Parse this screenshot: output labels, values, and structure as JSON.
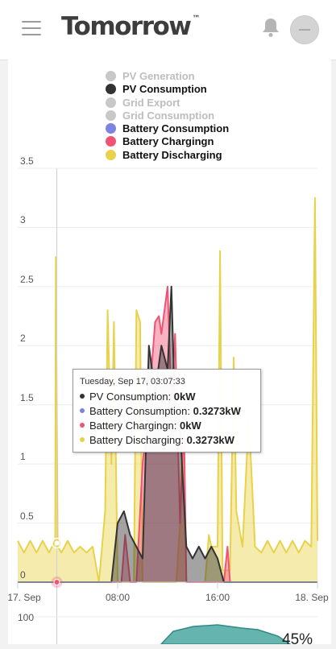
{
  "header": {
    "logo_text": "Tomorrow",
    "logo_mark": "™",
    "menu_icon": "hamburger-menu-icon",
    "bell_icon": "bell-icon",
    "avatar_icon": "avatar"
  },
  "colors": {
    "pv_consumption": "#333333",
    "battery_consumption": "#7b84e0",
    "battery_charging": "#ef5475",
    "battery_discharging": "#e8d24a",
    "disabled": "#c8c8c8"
  },
  "legend": [
    {
      "label": "PV Generation",
      "enabled": false,
      "color": "#c8c8c8"
    },
    {
      "label": "PV Consumption",
      "enabled": true,
      "color": "#333333"
    },
    {
      "label": "Grid Export",
      "enabled": false,
      "color": "#c8c8c8"
    },
    {
      "label": "Grid Consumption",
      "enabled": false,
      "color": "#c8c8c8"
    },
    {
      "label": "Battery Consumption",
      "enabled": true,
      "color": "#7b84e0"
    },
    {
      "label": "Battery Chargingn",
      "enabled": true,
      "color": "#ef5475"
    },
    {
      "label": "Battery Discharging",
      "enabled": true,
      "color": "#e8d24a"
    }
  ],
  "tooltip": {
    "title": "Tuesday, Sep 17, 03:07:33",
    "rows": [
      {
        "label": "PV Consumption: ",
        "value": "0kW",
        "color": "#333333"
      },
      {
        "label": "Battery Consumption: ",
        "value": "0.3273kW",
        "color": "#7b84e0"
      },
      {
        "label": "Battery Chargingn: ",
        "value": "0kW",
        "color": "#ef5475"
      },
      {
        "label": "Battery Discharging: ",
        "value": "0.3273kW",
        "color": "#e8d24a"
      }
    ]
  },
  "chart_data": {
    "type": "area",
    "ylim": [
      0,
      3.5
    ],
    "y_ticks": [
      "3.5",
      "3",
      "2.5",
      "2",
      "1.5",
      "1",
      "0.5",
      "0"
    ],
    "x_ticks": [
      "17. Sep",
      "08:00",
      "16:00",
      "18. Sep"
    ],
    "x_tick_hours": [
      0,
      8,
      16,
      24
    ],
    "crosshair_hour": 3.13,
    "series": [
      {
        "name": "Battery Discharging",
        "color": "#e8d24a",
        "points": [
          [
            0,
            0.35
          ],
          [
            0.5,
            0.25
          ],
          [
            1,
            0.35
          ],
          [
            1.5,
            0.25
          ],
          [
            2,
            0.35
          ],
          [
            2.5,
            0.25
          ],
          [
            3,
            0.35
          ],
          [
            3.05,
            2.75
          ],
          [
            3.2,
            0.3
          ],
          [
            3.5,
            0.25
          ],
          [
            4,
            0.35
          ],
          [
            4.5,
            0.25
          ],
          [
            5,
            0.3
          ],
          [
            5.5,
            0.25
          ],
          [
            6,
            0.3
          ],
          [
            6.5,
            0.0
          ],
          [
            7,
            0.6
          ],
          [
            7.2,
            2.3
          ],
          [
            7.5,
            1.0
          ],
          [
            7.7,
            2.2
          ],
          [
            8,
            0.0
          ],
          [
            9.3,
            0.0
          ],
          [
            9.5,
            2.3
          ],
          [
            9.8,
            2.2
          ],
          [
            10,
            0.0
          ],
          [
            12,
            0.0
          ],
          [
            12.7,
            0.0
          ],
          [
            13,
            0.5
          ],
          [
            13.2,
            1.3
          ],
          [
            13.5,
            0.0
          ],
          [
            15,
            0.0
          ],
          [
            15.3,
            0.4
          ],
          [
            15.5,
            0.3
          ],
          [
            16,
            0.3
          ],
          [
            16.2,
            2.8
          ],
          [
            16.4,
            0.1
          ],
          [
            17,
            0.1
          ],
          [
            17.3,
            1.9
          ],
          [
            17.5,
            0.6
          ],
          [
            18,
            0.3
          ],
          [
            18.5,
            1.4
          ],
          [
            19,
            0.3
          ],
          [
            19.5,
            0.25
          ],
          [
            20,
            0.35
          ],
          [
            20.5,
            0.25
          ],
          [
            21,
            0.35
          ],
          [
            21.5,
            0.25
          ],
          [
            22,
            0.35
          ],
          [
            22.5,
            0.25
          ],
          [
            23,
            0.35
          ],
          [
            23.5,
            0.3
          ],
          [
            23.8,
            3.25
          ],
          [
            24,
            0.35
          ]
        ]
      },
      {
        "name": "Battery Chargingn",
        "color": "#ef5475",
        "points": [
          [
            0,
            0
          ],
          [
            8.3,
            0
          ],
          [
            8.6,
            0.4
          ],
          [
            9,
            0.0
          ],
          [
            9.5,
            0.0
          ],
          [
            10,
            1.0
          ],
          [
            10.5,
            1.5
          ],
          [
            11,
            2.2
          ],
          [
            11.3,
            2.25
          ],
          [
            11.5,
            2.1
          ],
          [
            12,
            2.5
          ],
          [
            12.3,
            1.5
          ],
          [
            12.6,
            2.1
          ],
          [
            13,
            0.5
          ],
          [
            13.3,
            1.4
          ],
          [
            13.5,
            0.0
          ],
          [
            16.5,
            0.0
          ],
          [
            16.8,
            0.3
          ],
          [
            17,
            0.0
          ],
          [
            24,
            0
          ]
        ]
      },
      {
        "name": "PV Consumption",
        "color": "#333333",
        "points": [
          [
            0,
            0
          ],
          [
            7.5,
            0
          ],
          [
            8,
            0.5
          ],
          [
            8.5,
            0.6
          ],
          [
            9,
            0.4
          ],
          [
            10,
            0.2
          ],
          [
            10.5,
            2.0
          ],
          [
            11,
            1.6
          ],
          [
            11.5,
            2.0
          ],
          [
            12,
            1.8
          ],
          [
            12.3,
            2.5
          ],
          [
            12.6,
            1.4
          ],
          [
            13,
            1.3
          ],
          [
            13.5,
            0.3
          ],
          [
            14,
            0.2
          ],
          [
            14.5,
            0.3
          ],
          [
            15,
            0.2
          ],
          [
            15.5,
            0.3
          ],
          [
            16,
            0.2
          ],
          [
            16.5,
            0.0
          ],
          [
            24,
            0
          ]
        ]
      }
    ]
  },
  "next_chart": {
    "y_tick": "100",
    "percent": "45%"
  }
}
